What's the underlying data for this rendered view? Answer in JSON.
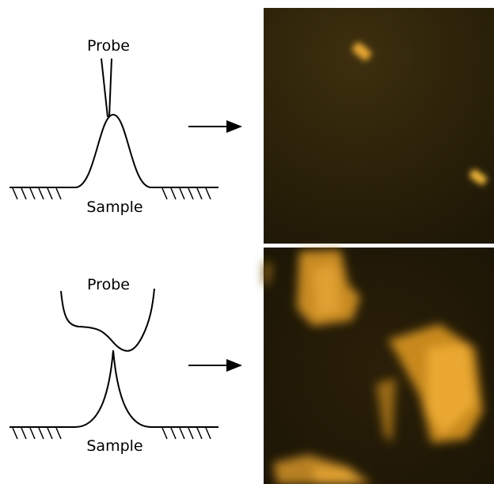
{
  "panels": [
    {
      "probe_label": "Probe",
      "sample_label": "Sample"
    },
    {
      "probe_label": "Probe",
      "sample_label": "Sample"
    }
  ]
}
